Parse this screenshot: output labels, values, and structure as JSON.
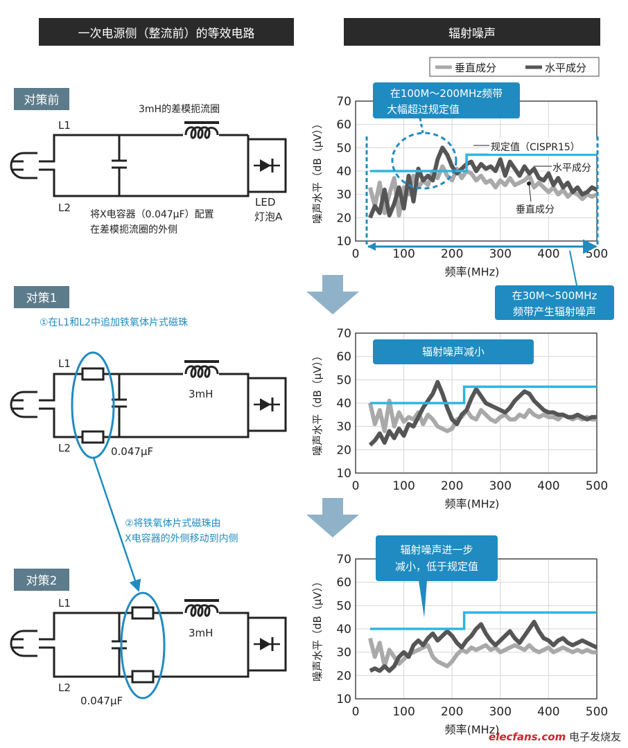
{
  "headers": {
    "left": "一次电源侧（整流前）的等效电路",
    "right": "辐射噪声"
  },
  "legend": {
    "vertical": "垂直成分",
    "horizontal": "水平成分"
  },
  "steps": [
    {
      "tag": "对策前",
      "labels": {
        "l1": "L1",
        "l2": "L2",
        "inductor": "3mH的差模扼流圈",
        "capacitor_note_1": "将X电容器（0.047μF）配置",
        "capacitor_note_2": "在差模扼流圈的外侧",
        "led_1": "LED",
        "led_2": "灯泡A"
      },
      "chart_data": {
        "type": "line",
        "xlabel": "频率(MHz)",
        "ylabel": "噪声水平（dB（μV））",
        "xlim": [
          0,
          500
        ],
        "ylim": [
          10,
          70
        ],
        "xticks": [
          0,
          100,
          200,
          300,
          400,
          500
        ],
        "yticks": [
          10,
          20,
          30,
          40,
          50,
          60,
          70
        ],
        "limit": {
          "x": [
            30,
            230,
            230,
            500
          ],
          "y": [
            40,
            40,
            47,
            47
          ]
        },
        "series": [
          {
            "name": "水平成分",
            "x": [
              30,
              40,
              50,
              60,
              70,
              80,
              90,
              100,
              110,
              120,
              130,
              140,
              150,
              160,
              170,
              180,
              190,
              200,
              210,
              220,
              230,
              240,
              250,
              260,
              270,
              280,
              290,
              300,
              310,
              320,
              330,
              340,
              350,
              360,
              370,
              380,
              390,
              400,
              410,
              420,
              430,
              440,
              450,
              460,
              470,
              480,
              490,
              500
            ],
            "y": [
              20,
              25,
              22,
              32,
              21,
              26,
              33,
              24,
              38,
              27,
              41,
              36,
              38,
              36,
              45,
              50,
              47,
              42,
              39,
              41,
              43,
              44,
              40,
              43,
              41,
              42,
              40,
              45,
              38,
              44,
              41,
              38,
              42,
              39,
              41,
              37,
              36,
              39,
              34,
              37,
              33,
              35,
              31,
              33,
              30,
              31,
              33,
              32
            ]
          },
          {
            "name": "垂直成分",
            "x": [
              30,
              40,
              50,
              60,
              70,
              80,
              90,
              100,
              110,
              120,
              130,
              140,
              150,
              160,
              170,
              180,
              190,
              200,
              210,
              220,
              230,
              240,
              250,
              260,
              270,
              280,
              290,
              300,
              310,
              320,
              330,
              340,
              350,
              360,
              370,
              380,
              390,
              400,
              410,
              420,
              430,
              440,
              450,
              460,
              470,
              480,
              490,
              500
            ],
            "y": [
              33,
              25,
              35,
              22,
              30,
              37,
              21,
              33,
              30,
              38,
              33,
              36,
              34,
              40,
              37,
              42,
              38,
              36,
              41,
              37,
              40,
              39,
              36,
              38,
              35,
              36,
              33,
              36,
              34,
              37,
              34,
              35,
              36,
              38,
              33,
              35,
              33,
              31,
              33,
              30,
              32,
              29,
              31,
              30,
              28,
              30,
              29,
              30
            ]
          }
        ],
        "annotations": {
          "box_top_1": "在100M～200MHz频带",
          "box_top_2": "大幅超过规定值",
          "limit_label": "规定值（CISPR15）",
          "horizontal_label": "水平成分",
          "vertical_label": "垂直成分",
          "box_bottom_1": "在30M～500MHz",
          "box_bottom_2": "频带产生辐射噪声"
        }
      }
    },
    {
      "tag": "对策1",
      "note": "①在L1和L2中追加铁氧体片式磁珠",
      "labels": {
        "l1": "L1",
        "l2": "L2",
        "inductor": "3mH",
        "capacitor": "0.047μF"
      },
      "chart_data": {
        "type": "line",
        "xlabel": "频率(MHz)",
        "ylabel": "噪声水平（dB（μV））",
        "xlim": [
          0,
          500
        ],
        "ylim": [
          10,
          70
        ],
        "xticks": [
          0,
          100,
          200,
          300,
          400,
          500
        ],
        "yticks": [
          10,
          20,
          30,
          40,
          50,
          60,
          70
        ],
        "limit": {
          "x": [
            30,
            225,
            225,
            500
          ],
          "y": [
            40,
            40,
            47,
            47
          ]
        },
        "series": [
          {
            "name": "水平成分",
            "x": [
              30,
              40,
              50,
              60,
              70,
              80,
              90,
              100,
              110,
              120,
              130,
              140,
              150,
              160,
              170,
              180,
              190,
              200,
              210,
              220,
              230,
              240,
              250,
              260,
              270,
              280,
              290,
              300,
              310,
              320,
              330,
              340,
              350,
              360,
              370,
              380,
              390,
              400,
              410,
              420,
              430,
              440,
              450,
              460,
              470,
              480,
              490,
              500
            ],
            "y": [
              22,
              24,
              27,
              23,
              28,
              25,
              29,
              26,
              31,
              30,
              34,
              38,
              41,
              44,
              49,
              44,
              38,
              33,
              31,
              35,
              37,
              42,
              46,
              43,
              40,
              39,
              38,
              37,
              36,
              38,
              41,
              43,
              45,
              44,
              41,
              39,
              37,
              36,
              36,
              35,
              35,
              34,
              34,
              35,
              34,
              33,
              34,
              34
            ]
          },
          {
            "name": "垂直成分",
            "x": [
              30,
              40,
              50,
              60,
              70,
              80,
              90,
              100,
              110,
              120,
              130,
              140,
              150,
              160,
              170,
              180,
              190,
              200,
              210,
              220,
              230,
              240,
              250,
              260,
              270,
              280,
              290,
              300,
              310,
              320,
              330,
              340,
              350,
              360,
              370,
              380,
              390,
              400,
              410,
              420,
              430,
              440,
              450,
              460,
              470,
              480,
              490,
              500
            ],
            "y": [
              40,
              31,
              37,
              28,
              41,
              30,
              36,
              32,
              34,
              33,
              36,
              31,
              35,
              33,
              30,
              29,
              28,
              29,
              33,
              34,
              37,
              34,
              33,
              37,
              35,
              33,
              32,
              34,
              35,
              33,
              33,
              35,
              34,
              37,
              35,
              34,
              35,
              34,
              34,
              33,
              35,
              34,
              33,
              34,
              33,
              34,
              33,
              33
            ]
          }
        ],
        "annotations": {
          "box": "辐射噪声减小"
        }
      }
    },
    {
      "tag": "对策2",
      "note_1": "②将铁氧体片式磁珠由",
      "note_2": "X电容器的外侧移动到内侧",
      "labels": {
        "l1": "L1",
        "l2": "L2",
        "inductor": "3mH",
        "capacitor": "0.047μF"
      },
      "chart_data": {
        "type": "line",
        "xlabel": "频率(MHz)",
        "ylabel": "噪声水平（dB（μV））",
        "xlim": [
          0,
          500
        ],
        "ylim": [
          10,
          70
        ],
        "xticks": [
          0,
          100,
          200,
          300,
          400,
          500
        ],
        "yticks": [
          10,
          20,
          30,
          40,
          50,
          60,
          70
        ],
        "limit": {
          "x": [
            30,
            225,
            225,
            500
          ],
          "y": [
            40,
            40,
            47,
            47
          ]
        },
        "series": [
          {
            "name": "水平成分",
            "x": [
              30,
              40,
              50,
              60,
              70,
              80,
              90,
              100,
              110,
              120,
              130,
              140,
              150,
              160,
              170,
              180,
              190,
              200,
              210,
              220,
              230,
              240,
              250,
              260,
              270,
              280,
              290,
              300,
              310,
              320,
              330,
              340,
              350,
              360,
              370,
              380,
              390,
              400,
              410,
              420,
              430,
              440,
              450,
              460,
              470,
              480,
              490,
              500
            ],
            "y": [
              22,
              23,
              22,
              24,
              22,
              24,
              28,
              30,
              28,
              33,
              35,
              33,
              36,
              38,
              35,
              37,
              39,
              37,
              34,
              32,
              35,
              37,
              40,
              42,
              38,
              35,
              33,
              35,
              37,
              39,
              36,
              34,
              37,
              40,
              43,
              39,
              36,
              35,
              33,
              35,
              36,
              34,
              33,
              34,
              35,
              34,
              33,
              32
            ]
          },
          {
            "name": "垂直成分",
            "x": [
              30,
              40,
              50,
              60,
              70,
              80,
              90,
              100,
              110,
              120,
              130,
              140,
              150,
              160,
              170,
              180,
              190,
              200,
              210,
              220,
              230,
              240,
              250,
              260,
              270,
              280,
              290,
              300,
              310,
              320,
              330,
              340,
              350,
              360,
              370,
              380,
              390,
              400,
              410,
              420,
              430,
              440,
              450,
              460,
              470,
              480,
              490,
              500
            ],
            "y": [
              36,
              28,
              34,
              24,
              31,
              28,
              25,
              27,
              29,
              30,
              31,
              32,
              33,
              28,
              26,
              25,
              24,
              26,
              29,
              31,
              30,
              32,
              31,
              32,
              33,
              31,
              32,
              30,
              31,
              32,
              33,
              32,
              31,
              33,
              31,
              30,
              31,
              32,
              30,
              31,
              32,
              31,
              30,
              31,
              30,
              31,
              30,
              30
            ]
          }
        ],
        "annotations": {
          "box_1": "辐射噪声进一步",
          "box_2": "减小，低于规定值"
        }
      }
    }
  ],
  "watermark": {
    "brand": "elecfans",
    "domain": ".com",
    "cn": "电子发烧友"
  },
  "colors": {
    "teal": "#1f8bc0",
    "limit": "#2fb5e0",
    "tag_bg": "#5c7b8b",
    "horizontal": "#555555",
    "vertical": "#a9a9a9",
    "arrow": "#8fb2c9"
  }
}
